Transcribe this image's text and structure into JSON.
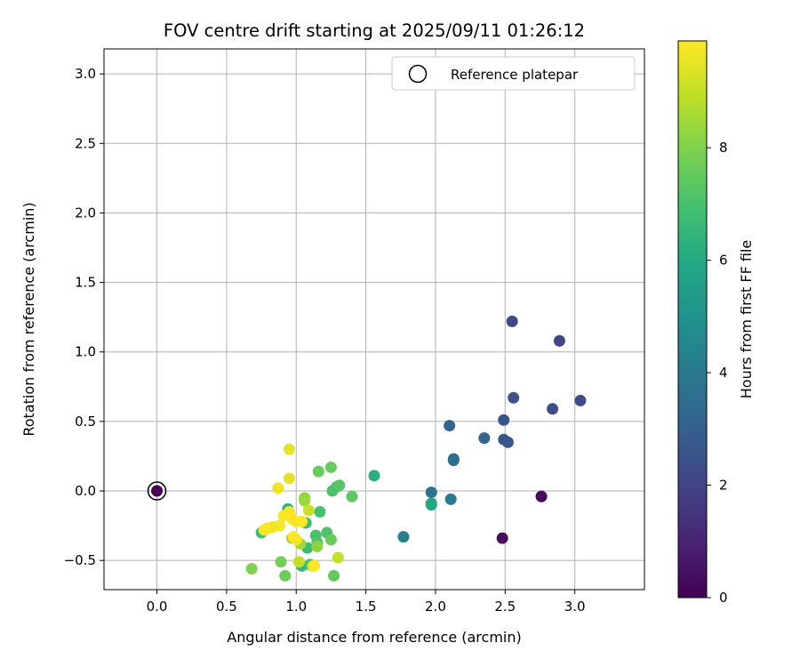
{
  "chart_data": {
    "type": "scatter",
    "title": "FOV centre drift starting at 2025/09/11 01:26:12",
    "xlabel": "Angular distance from reference (arcmin)",
    "ylabel": "Rotation from reference (arcmin)",
    "xlim": [
      -0.38,
      3.5
    ],
    "ylim": [
      -0.71,
      3.18
    ],
    "xticks": [
      "0.0",
      "0.5",
      "1.0",
      "1.5",
      "2.0",
      "2.5",
      "3.0"
    ],
    "xtick_values": [
      0.0,
      0.5,
      1.0,
      1.5,
      2.0,
      2.5,
      3.0
    ],
    "yticks": [
      "−0.5",
      "0.0",
      "0.5",
      "1.0",
      "1.5",
      "2.0",
      "2.5",
      "3.0"
    ],
    "ytick_values": [
      -0.5,
      0.0,
      0.5,
      1.0,
      1.5,
      2.0,
      2.5,
      3.0
    ],
    "grid": true,
    "legend": {
      "position": "top-right",
      "entries": [
        "Reference platepar"
      ]
    },
    "reference_point": {
      "x": 0.0,
      "y": 0.0
    },
    "colorbar": {
      "label": "Hours from first FF file",
      "range": [
        0,
        9.9
      ],
      "ticks": [
        "0",
        "2",
        "4",
        "6",
        "8"
      ],
      "tick_values": [
        0,
        2,
        4,
        6,
        8
      ],
      "colormap": "viridis"
    },
    "points": [
      {
        "x": 0.0,
        "y": 0.0,
        "c": 0.0
      },
      {
        "x": 2.76,
        "y": -0.04,
        "c": 0.2
      },
      {
        "x": 2.48,
        "y": -0.34,
        "c": 0.3
      },
      {
        "x": 2.55,
        "y": 1.22,
        "c": 2.2
      },
      {
        "x": 2.89,
        "y": 1.08,
        "c": 2.0
      },
      {
        "x": 3.04,
        "y": 0.65,
        "c": 2.3
      },
      {
        "x": 2.84,
        "y": 0.59,
        "c": 2.4
      },
      {
        "x": 2.56,
        "y": 0.67,
        "c": 2.5
      },
      {
        "x": 2.49,
        "y": 0.51,
        "c": 2.6
      },
      {
        "x": 2.49,
        "y": 0.37,
        "c": 2.7
      },
      {
        "x": 2.52,
        "y": 0.35,
        "c": 2.6
      },
      {
        "x": 2.35,
        "y": 0.38,
        "c": 3.2
      },
      {
        "x": 2.1,
        "y": 0.47,
        "c": 3.3
      },
      {
        "x": 2.13,
        "y": 0.23,
        "c": 3.4
      },
      {
        "x": 2.13,
        "y": 0.22,
        "c": 3.6
      },
      {
        "x": 1.97,
        "y": -0.01,
        "c": 3.8
      },
      {
        "x": 2.11,
        "y": -0.06,
        "c": 4.0
      },
      {
        "x": 1.77,
        "y": -0.33,
        "c": 4.2
      },
      {
        "x": 1.97,
        "y": -0.09,
        "c": 5.6
      },
      {
        "x": 1.97,
        "y": -0.1,
        "c": 5.9
      },
      {
        "x": 1.56,
        "y": 0.11,
        "c": 6.2
      },
      {
        "x": 0.94,
        "y": -0.13,
        "c": 6.3
      },
      {
        "x": 0.94,
        "y": -0.15,
        "c": 6.4
      },
      {
        "x": 0.75,
        "y": -0.3,
        "c": 6.8
      },
      {
        "x": 1.04,
        "y": -0.54,
        "c": 6.6
      },
      {
        "x": 1.08,
        "y": -0.41,
        "c": 6.7
      },
      {
        "x": 1.07,
        "y": -0.23,
        "c": 6.8
      },
      {
        "x": 1.1,
        "y": -0.53,
        "c": 7.0
      },
      {
        "x": 1.14,
        "y": -0.32,
        "c": 7.0
      },
      {
        "x": 1.15,
        "y": -0.37,
        "c": 7.2
      },
      {
        "x": 1.17,
        "y": -0.15,
        "c": 7.0
      },
      {
        "x": 1.22,
        "y": -0.3,
        "c": 7.1
      },
      {
        "x": 1.26,
        "y": 0.0,
        "c": 7.1
      },
      {
        "x": 1.29,
        "y": 0.03,
        "c": 7.0
      },
      {
        "x": 1.31,
        "y": 0.04,
        "c": 7.3
      },
      {
        "x": 1.25,
        "y": -0.35,
        "c": 7.6
      },
      {
        "x": 1.4,
        "y": -0.04,
        "c": 7.4
      },
      {
        "x": 1.27,
        "y": -0.61,
        "c": 7.5
      },
      {
        "x": 1.16,
        "y": 0.14,
        "c": 7.6
      },
      {
        "x": 1.25,
        "y": 0.17,
        "c": 7.6
      },
      {
        "x": 0.92,
        "y": -0.61,
        "c": 7.7
      },
      {
        "x": 0.89,
        "y": -0.51,
        "c": 7.8
      },
      {
        "x": 0.68,
        "y": -0.56,
        "c": 8.0
      },
      {
        "x": 1.06,
        "y": -0.05,
        "c": 8.2
      },
      {
        "x": 1.06,
        "y": -0.07,
        "c": 8.4
      },
      {
        "x": 0.97,
        "y": -0.34,
        "c": 8.3
      },
      {
        "x": 1.03,
        "y": -0.38,
        "c": 8.5
      },
      {
        "x": 1.15,
        "y": -0.4,
        "c": 8.2
      },
      {
        "x": 1.3,
        "y": -0.48,
        "c": 9.0
      },
      {
        "x": 1.02,
        "y": -0.51,
        "c": 9.0
      },
      {
        "x": 1.12,
        "y": -0.54,
        "c": 9.1
      },
      {
        "x": 1.09,
        "y": -0.14,
        "c": 9.1
      },
      {
        "x": 0.95,
        "y": 0.3,
        "c": 9.5
      },
      {
        "x": 0.95,
        "y": 0.09,
        "c": 9.5
      },
      {
        "x": 0.87,
        "y": 0.02,
        "c": 9.7
      },
      {
        "x": 0.91,
        "y": -0.18,
        "c": 9.8
      },
      {
        "x": 0.95,
        "y": -0.15,
        "c": 9.8
      },
      {
        "x": 0.97,
        "y": -0.2,
        "c": 9.9
      },
      {
        "x": 1.0,
        "y": -0.22,
        "c": 9.8
      },
      {
        "x": 1.04,
        "y": -0.22,
        "c": 9.9
      },
      {
        "x": 0.88,
        "y": -0.25,
        "c": 9.8
      },
      {
        "x": 0.83,
        "y": -0.26,
        "c": 9.7
      },
      {
        "x": 0.79,
        "y": -0.27,
        "c": 9.8
      },
      {
        "x": 0.77,
        "y": -0.28,
        "c": 9.9
      },
      {
        "x": 0.98,
        "y": -0.33,
        "c": 9.9
      },
      {
        "x": 1.0,
        "y": -0.35,
        "c": 9.8
      },
      {
        "x": 1.13,
        "y": -0.54,
        "c": 9.9
      }
    ]
  }
}
